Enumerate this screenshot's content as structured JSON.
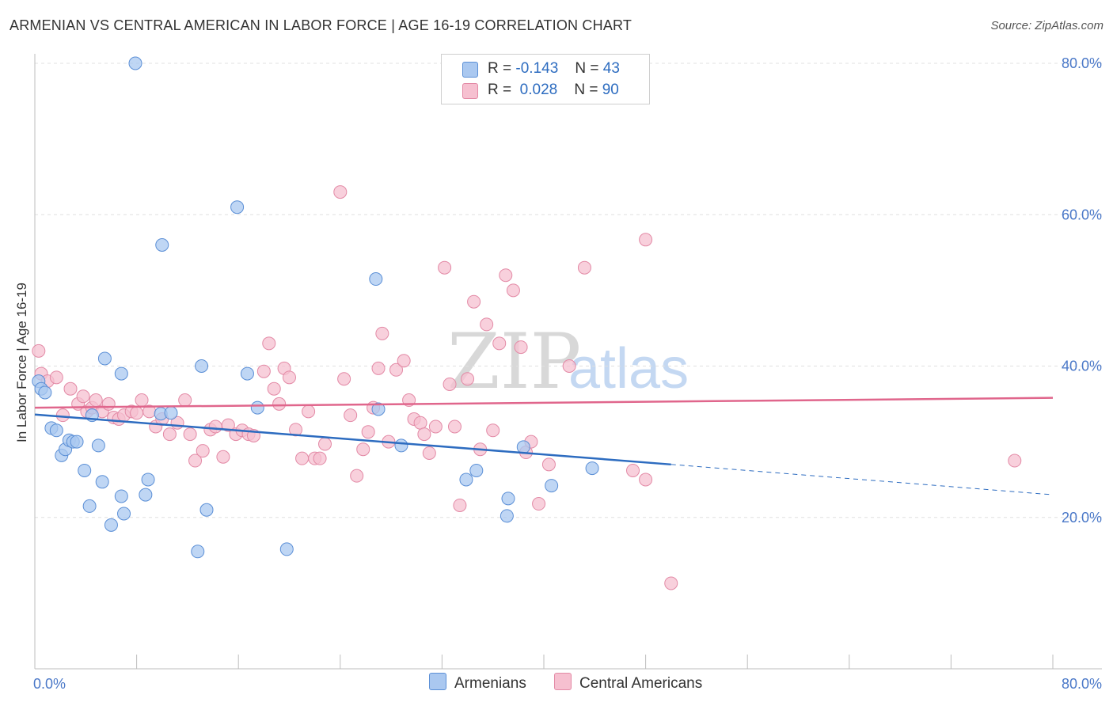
{
  "title": "ARMENIAN VS CENTRAL AMERICAN IN LABOR FORCE | AGE 16-19 CORRELATION CHART",
  "source": "Source: ZipAtlas.com",
  "watermark": {
    "zip": "ZIP",
    "atlas": "atlas"
  },
  "legend": {
    "r_label": "R =",
    "n_label": "N =",
    "series1": {
      "r": "-0.143",
      "n": "43"
    },
    "series2": {
      "r": "0.028",
      "n": "90"
    }
  },
  "colors": {
    "armenian_fill": "#aac8f0",
    "armenian_stroke": "#5b8fd6",
    "armenian_line": "#2d6cc0",
    "central_fill": "#f6c0d0",
    "central_stroke": "#e38aa6",
    "central_line": "#e0668c",
    "axis_label": "#4a78c8",
    "grid": "#e0e0e0"
  },
  "chart_data": {
    "type": "scatter",
    "title": "ARMENIAN VS CENTRAL AMERICAN IN LABOR FORCE | AGE 16-19 CORRELATION CHART",
    "xlabel": "",
    "ylabel": "In Labor Force | Age 16-19",
    "xlim": [
      0,
      0.8
    ],
    "ylim": [
      0,
      0.8
    ],
    "x_tick_labels": [
      "0.0%",
      "80.0%"
    ],
    "y_ticks": [
      0.2,
      0.4,
      0.6,
      0.8
    ],
    "y_tick_labels": [
      "20.0%",
      "40.0%",
      "60.0%",
      "80.0%"
    ],
    "grid": "horizontal dashed",
    "legend_placement": "top-center",
    "series": [
      {
        "name": "Armenians",
        "points": [
          [
            0.003,
            0.38
          ],
          [
            0.005,
            0.37
          ],
          [
            0.008,
            0.365
          ],
          [
            0.013,
            0.318
          ],
          [
            0.017,
            0.315
          ],
          [
            0.021,
            0.282
          ],
          [
            0.024,
            0.29
          ],
          [
            0.027,
            0.302
          ],
          [
            0.03,
            0.3
          ],
          [
            0.033,
            0.3
          ],
          [
            0.039,
            0.262
          ],
          [
            0.043,
            0.215
          ],
          [
            0.045,
            0.335
          ],
          [
            0.05,
            0.295
          ],
          [
            0.053,
            0.247
          ],
          [
            0.055,
            0.41
          ],
          [
            0.06,
            0.19
          ],
          [
            0.068,
            0.228
          ],
          [
            0.068,
            0.39
          ],
          [
            0.07,
            0.205
          ],
          [
            0.079,
            0.8
          ],
          [
            0.087,
            0.23
          ],
          [
            0.089,
            0.25
          ],
          [
            0.099,
            0.337
          ],
          [
            0.1,
            0.56
          ],
          [
            0.107,
            0.338
          ],
          [
            0.128,
            0.155
          ],
          [
            0.131,
            0.4
          ],
          [
            0.135,
            0.21
          ],
          [
            0.159,
            0.61
          ],
          [
            0.167,
            0.39
          ],
          [
            0.175,
            0.345
          ],
          [
            0.198,
            0.158
          ],
          [
            0.268,
            0.515
          ],
          [
            0.27,
            0.343
          ],
          [
            0.288,
            0.295
          ],
          [
            0.339,
            0.25
          ],
          [
            0.347,
            0.262
          ],
          [
            0.371,
            0.202
          ],
          [
            0.372,
            0.225
          ],
          [
            0.384,
            0.293
          ],
          [
            0.406,
            0.242
          ],
          [
            0.438,
            0.265
          ]
        ],
        "trend": {
          "x": [
            0,
            0.5
          ],
          "y": [
            0.336,
            0.27
          ]
        },
        "trend_extension": {
          "x": [
            0.5,
            0.8
          ],
          "y": [
            0.27,
            0.23
          ]
        }
      },
      {
        "name": "Central Americans",
        "points": [
          [
            0.003,
            0.42
          ],
          [
            0.005,
            0.39
          ],
          [
            0.01,
            0.38
          ],
          [
            0.017,
            0.385
          ],
          [
            0.022,
            0.335
          ],
          [
            0.028,
            0.37
          ],
          [
            0.034,
            0.35
          ],
          [
            0.038,
            0.36
          ],
          [
            0.041,
            0.34
          ],
          [
            0.045,
            0.345
          ],
          [
            0.048,
            0.355
          ],
          [
            0.053,
            0.34
          ],
          [
            0.058,
            0.35
          ],
          [
            0.062,
            0.332
          ],
          [
            0.066,
            0.33
          ],
          [
            0.07,
            0.335
          ],
          [
            0.076,
            0.34
          ],
          [
            0.08,
            0.338
          ],
          [
            0.084,
            0.355
          ],
          [
            0.09,
            0.34
          ],
          [
            0.095,
            0.32
          ],
          [
            0.1,
            0.33
          ],
          [
            0.106,
            0.31
          ],
          [
            0.112,
            0.325
          ],
          [
            0.118,
            0.355
          ],
          [
            0.122,
            0.31
          ],
          [
            0.126,
            0.275
          ],
          [
            0.132,
            0.288
          ],
          [
            0.138,
            0.316
          ],
          [
            0.142,
            0.32
          ],
          [
            0.148,
            0.28
          ],
          [
            0.152,
            0.322
          ],
          [
            0.158,
            0.31
          ],
          [
            0.163,
            0.315
          ],
          [
            0.168,
            0.31
          ],
          [
            0.172,
            0.308
          ],
          [
            0.18,
            0.393
          ],
          [
            0.184,
            0.43
          ],
          [
            0.188,
            0.37
          ],
          [
            0.192,
            0.35
          ],
          [
            0.196,
            0.397
          ],
          [
            0.2,
            0.385
          ],
          [
            0.205,
            0.316
          ],
          [
            0.21,
            0.278
          ],
          [
            0.215,
            0.34
          ],
          [
            0.22,
            0.278
          ],
          [
            0.224,
            0.278
          ],
          [
            0.228,
            0.297
          ],
          [
            0.24,
            0.63
          ],
          [
            0.243,
            0.383
          ],
          [
            0.248,
            0.335
          ],
          [
            0.253,
            0.255
          ],
          [
            0.258,
            0.29
          ],
          [
            0.262,
            0.313
          ],
          [
            0.266,
            0.345
          ],
          [
            0.27,
            0.397
          ],
          [
            0.273,
            0.443
          ],
          [
            0.278,
            0.3
          ],
          [
            0.284,
            0.395
          ],
          [
            0.29,
            0.407
          ],
          [
            0.294,
            0.355
          ],
          [
            0.298,
            0.33
          ],
          [
            0.303,
            0.325
          ],
          [
            0.306,
            0.31
          ],
          [
            0.31,
            0.285
          ],
          [
            0.315,
            0.32
          ],
          [
            0.322,
            0.53
          ],
          [
            0.326,
            0.376
          ],
          [
            0.33,
            0.32
          ],
          [
            0.334,
            0.216
          ],
          [
            0.34,
            0.383
          ],
          [
            0.345,
            0.485
          ],
          [
            0.35,
            0.29
          ],
          [
            0.355,
            0.455
          ],
          [
            0.36,
            0.315
          ],
          [
            0.365,
            0.43
          ],
          [
            0.37,
            0.52
          ],
          [
            0.376,
            0.5
          ],
          [
            0.382,
            0.425
          ],
          [
            0.386,
            0.286
          ],
          [
            0.39,
            0.3
          ],
          [
            0.396,
            0.218
          ],
          [
            0.404,
            0.27
          ],
          [
            0.42,
            0.4
          ],
          [
            0.432,
            0.53
          ],
          [
            0.47,
            0.262
          ],
          [
            0.48,
            0.567
          ],
          [
            0.48,
            0.25
          ],
          [
            0.5,
            0.113
          ],
          [
            0.77,
            0.275
          ]
        ],
        "trend": {
          "x": [
            0,
            0.8
          ],
          "y": [
            0.345,
            0.358
          ]
        }
      }
    ]
  },
  "bottom_legend": {
    "armenians": "Armenians",
    "central": "Central Americans"
  }
}
